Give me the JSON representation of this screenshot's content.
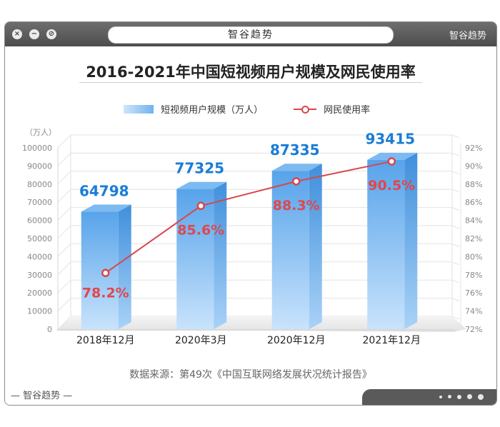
{
  "window": {
    "address_text": "智谷趋势",
    "brand": "智谷趋势",
    "brand_bottom": "— 智谷趋势 —"
  },
  "chart_data": {
    "type": "bar",
    "title": "2016-2021年中国短视频用户规模及网民使用率",
    "categories": [
      "2018年12月",
      "2020年3月",
      "2020年12月",
      "2021年12月"
    ],
    "series": [
      {
        "name": "短视频用户规模（万人）",
        "kind": "bar",
        "axis": "left",
        "values": [
          64798,
          77325,
          87335,
          93415
        ],
        "labels": [
          "64798",
          "77325",
          "87335",
          "93415"
        ]
      },
      {
        "name": "网民使用率",
        "kind": "line",
        "axis": "right",
        "values": [
          78.2,
          85.6,
          88.3,
          90.5
        ],
        "labels": [
          "78.2%",
          "85.6%",
          "88.3%",
          "90.5%"
        ]
      }
    ],
    "left_axis": {
      "unit": "（万人）",
      "min": 0,
      "max": 100000,
      "ticks": [
        "0",
        "10000",
        "20000",
        "30000",
        "40000",
        "50000",
        "60000",
        "70000",
        "80000",
        "90000",
        "100000"
      ]
    },
    "right_axis": {
      "min": 72,
      "max": 92,
      "ticks": [
        "72%",
        "74%",
        "76%",
        "78%",
        "80%",
        "82%",
        "84%",
        "86%",
        "88%",
        "90%",
        "92%"
      ]
    },
    "colors": {
      "bar": "#5aa7ec",
      "bar_light": "#bcdcfb",
      "line": "#d8474a",
      "bar_label": "#1a7dd6",
      "line_label": "#e0474c"
    },
    "source": "数据来源：第49次《中国互联网络发展状况统计报告》"
  }
}
